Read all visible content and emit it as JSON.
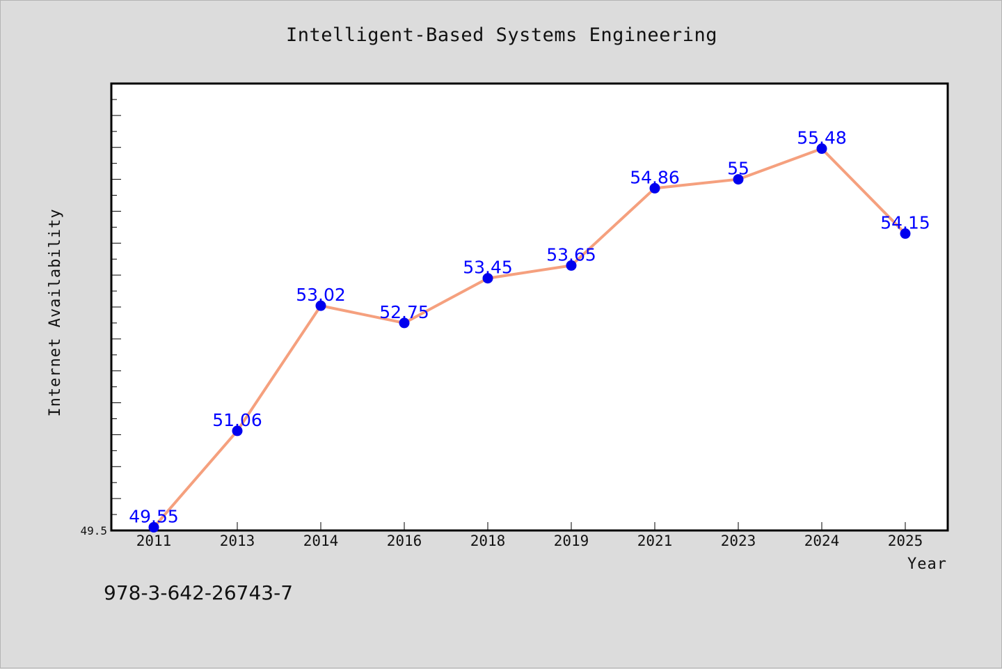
{
  "footer": {
    "isbn": "978-3-642-26743-7"
  },
  "chart_data": {
    "type": "line",
    "title": "Intelligent-Based Systems Engineering",
    "xlabel": "Year",
    "ylabel": "Internet Availability",
    "categories": [
      "2011",
      "2013",
      "2014",
      "2016",
      "2018",
      "2019",
      "2021",
      "2023",
      "2024",
      "2025"
    ],
    "series": [
      {
        "values": [
          49.55,
          51.06,
          53.02,
          52.75,
          53.45,
          53.65,
          54.86,
          55,
          55.48,
          54.15
        ]
      }
    ],
    "data_labels": [
      "49.55",
      "51.06",
      "53.02",
      "52.75",
      "53.45",
      "53.65",
      "54.86",
      "55",
      "55.48",
      "54.15"
    ],
    "y_tick_labels": [
      "49.5"
    ],
    "ylim": [
      49.5,
      56.5
    ],
    "grid": false,
    "legend": "none",
    "colors": {
      "line": "#f5a07e",
      "marker": "#0000ee",
      "label": "#0000ff",
      "background": "#dcdcdc",
      "plot_background": "#ffffff"
    }
  }
}
